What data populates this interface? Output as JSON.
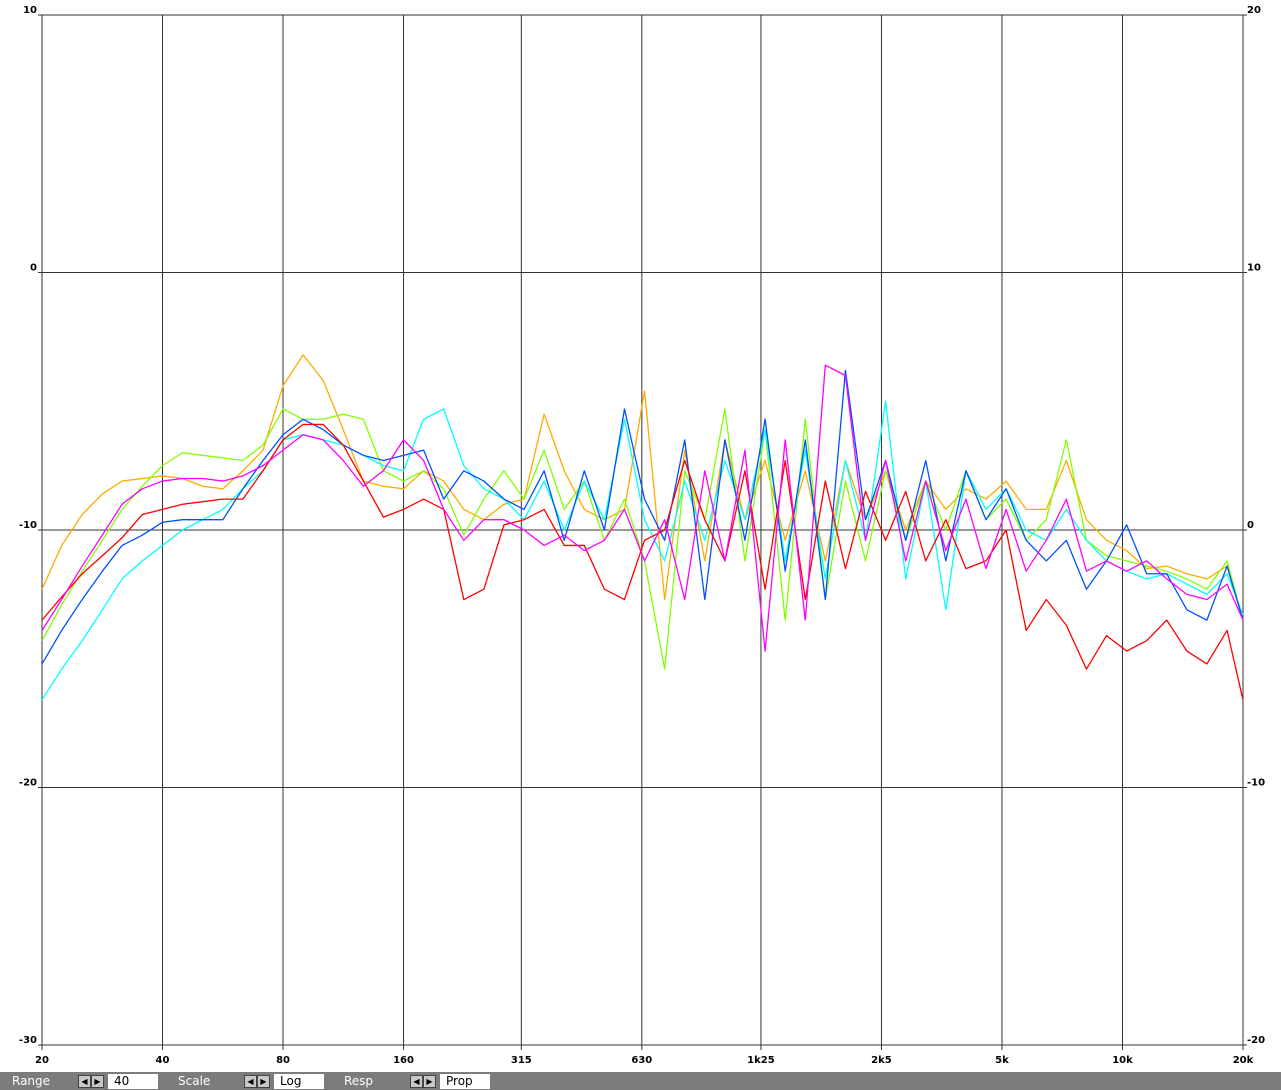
{
  "chart_data": {
    "type": "line",
    "xscale": "log",
    "grid": true,
    "x": [
      20,
      22.4,
      25.2,
      28.3,
      31.7,
      35.6,
      40,
      44.9,
      50.4,
      56.6,
      63.5,
      71.3,
      80,
      89.8,
      100.8,
      113.1,
      127,
      142.5,
      160,
      179.6,
      201.6,
      226.3,
      254,
      285.1,
      320,
      359.2,
      403.2,
      452.5,
      508,
      570.2,
      640,
      718.4,
      806.3,
      905.1,
      1016,
      1140,
      1280,
      1437,
      1613,
      1810,
      2032,
      2281,
      2560,
      2874,
      3225,
      3620,
      4064,
      4561,
      5120,
      5747,
      6451,
      7241,
      8127,
      9123,
      10240,
      11490,
      12900,
      14480,
      16250,
      18250,
      20000
    ],
    "xlim": [
      20,
      20000
    ],
    "xticks": [
      20,
      40,
      80,
      160,
      315,
      630,
      {
        "value": 1250,
        "label": "1k25"
      },
      {
        "value": 2500,
        "label": "2k5"
      },
      {
        "value": 5000,
        "label": "5k"
      },
      {
        "value": 10000,
        "label": "10k"
      },
      {
        "value": 20000,
        "label": "20k"
      }
    ],
    "ylim": [
      -30,
      10
    ],
    "yticks": [
      10,
      0,
      -10,
      -20,
      -30
    ],
    "y2lim": [
      -20,
      20
    ],
    "y2ticks": [
      20,
      10,
      0,
      -10,
      -20
    ],
    "series": [
      {
        "color": "#ffaa00",
        "values": [
          -12.3,
          -10.6,
          -9.4,
          -8.6,
          -8.1,
          -8.0,
          -7.9,
          -8.0,
          -8.3,
          -8.4,
          -7.7,
          -6.9,
          -4.4,
          -3.2,
          -4.2,
          -6.1,
          -8.1,
          -8.3,
          -8.4,
          -7.7,
          -8.1,
          -9.2,
          -9.6,
          -9.0,
          -8.8,
          -5.5,
          -7.7,
          -9.2,
          -9.6,
          -9.2,
          -4.6,
          -12.7,
          -6.9,
          -11.2,
          -6.5,
          -9.6,
          -7.3,
          -10.4,
          -7.7,
          -11.2,
          -7.3,
          -9.6,
          -7.7,
          -10.0,
          -8.1,
          -9.2,
          -8.4,
          -8.8,
          -8.1,
          -9.2,
          -9.2,
          -7.3,
          -9.6,
          -10.4,
          -10.8,
          -11.5,
          -11.4,
          -11.7,
          -11.9,
          -11.4,
          -13.5
        ]
      },
      {
        "color": "#80ff00",
        "values": [
          -14.3,
          -12.9,
          -11.6,
          -10.4,
          -9.2,
          -8.3,
          -7.5,
          -7.0,
          -7.1,
          -7.2,
          -7.3,
          -6.7,
          -5.3,
          -5.7,
          -5.7,
          -5.5,
          -5.7,
          -7.7,
          -8.1,
          -7.7,
          -8.4,
          -10.2,
          -8.8,
          -7.7,
          -8.8,
          -6.9,
          -9.2,
          -8.1,
          -10.4,
          -8.8,
          -11.2,
          -15.4,
          -7.7,
          -9.6,
          -5.3,
          -11.2,
          -6.1,
          -13.5,
          -5.7,
          -12.7,
          -8.1,
          -11.2,
          -7.7,
          -10.4,
          -8.1,
          -10.0,
          -7.7,
          -9.6,
          -8.8,
          -10.4,
          -9.6,
          -6.5,
          -10.4,
          -11.0,
          -11.2,
          -11.4,
          -11.6,
          -11.9,
          -12.3,
          -11.2,
          -13.5
        ]
      },
      {
        "color": "#00ffff",
        "values": [
          -16.6,
          -15.4,
          -14.3,
          -13.1,
          -11.9,
          -11.2,
          -10.6,
          -10.0,
          -9.6,
          -9.2,
          -8.4,
          -7.7,
          -6.5,
          -6.3,
          -6.5,
          -6.7,
          -7.1,
          -7.5,
          -7.7,
          -5.7,
          -5.3,
          -7.5,
          -8.4,
          -8.8,
          -9.6,
          -8.1,
          -10.0,
          -8.1,
          -9.6,
          -5.7,
          -9.6,
          -11.2,
          -8.1,
          -10.4,
          -7.3,
          -9.6,
          -6.1,
          -11.2,
          -6.9,
          -11.9,
          -7.3,
          -10.4,
          -5.0,
          -11.9,
          -8.1,
          -13.1,
          -7.7,
          -9.2,
          -8.4,
          -10.0,
          -10.4,
          -9.2,
          -10.4,
          -11.2,
          -11.6,
          -11.9,
          -11.7,
          -12.1,
          -12.5,
          -11.7,
          -13.3
        ]
      },
      {
        "color": "#0050ff",
        "values": [
          -15.2,
          -13.9,
          -12.7,
          -11.6,
          -10.6,
          -10.2,
          -9.7,
          -9.6,
          -9.6,
          -9.6,
          -8.4,
          -7.3,
          -6.3,
          -5.7,
          -6.1,
          -6.7,
          -7.1,
          -7.3,
          -7.1,
          -6.9,
          -8.8,
          -7.7,
          -8.1,
          -8.8,
          -9.2,
          -7.7,
          -10.4,
          -7.7,
          -10.0,
          -5.3,
          -8.8,
          -10.4,
          -6.5,
          -12.7,
          -6.5,
          -10.4,
          -5.7,
          -11.6,
          -6.5,
          -12.7,
          -3.8,
          -9.6,
          -7.3,
          -10.4,
          -7.3,
          -11.2,
          -7.7,
          -9.6,
          -8.4,
          -10.4,
          -11.2,
          -10.4,
          -12.3,
          -11.2,
          -9.8,
          -11.7,
          -11.7,
          -13.1,
          -13.5,
          -11.4,
          -13.5
        ]
      },
      {
        "color": "#ff0000",
        "values": [
          -13.5,
          -12.6,
          -11.7,
          -11.0,
          -10.3,
          -9.4,
          -9.2,
          -9.0,
          -8.9,
          -8.8,
          -8.8,
          -7.7,
          -6.5,
          -5.9,
          -5.9,
          -6.7,
          -8.1,
          -9.5,
          -9.2,
          -8.8,
          -9.2,
          -12.7,
          -12.3,
          -9.8,
          -9.6,
          -9.2,
          -10.6,
          -10.6,
          -12.3,
          -12.7,
          -10.4,
          -10.0,
          -7.3,
          -9.6,
          -11.2,
          -7.7,
          -12.3,
          -7.3,
          -12.7,
          -8.1,
          -11.5,
          -8.5,
          -10.4,
          -8.5,
          -11.2,
          -9.6,
          -11.5,
          -11.2,
          -10.0,
          -13.9,
          -12.7,
          -13.7,
          -15.4,
          -14.1,
          -14.7,
          -14.3,
          -13.5,
          -14.7,
          -15.2,
          -13.9,
          -16.6
        ]
      },
      {
        "color": "#ff00ff",
        "values": [
          -13.9,
          -12.7,
          -11.4,
          -10.2,
          -9.0,
          -8.4,
          -8.1,
          -8.0,
          -8.0,
          -8.1,
          -7.9,
          -7.5,
          -6.9,
          -6.3,
          -6.5,
          -7.3,
          -8.3,
          -7.7,
          -6.5,
          -7.3,
          -9.2,
          -10.4,
          -9.6,
          -9.6,
          -10.0,
          -10.6,
          -10.2,
          -10.8,
          -10.4,
          -9.2,
          -11.2,
          -9.6,
          -12.7,
          -7.7,
          -11.2,
          -6.9,
          -14.7,
          -6.5,
          -13.5,
          -3.6,
          -4.0,
          -10.4,
          -7.3,
          -11.2,
          -8.1,
          -10.8,
          -8.8,
          -11.5,
          -9.2,
          -11.6,
          -10.4,
          -8.8,
          -11.6,
          -11.2,
          -11.6,
          -11.2,
          -11.9,
          -12.5,
          -12.7,
          -12.1,
          -13.5
        ]
      }
    ]
  },
  "toolbar": [
    {
      "label": "Range",
      "value": "40"
    },
    {
      "label": "Scale",
      "value": "Log"
    },
    {
      "label": "Resp",
      "value": "Prop"
    }
  ]
}
